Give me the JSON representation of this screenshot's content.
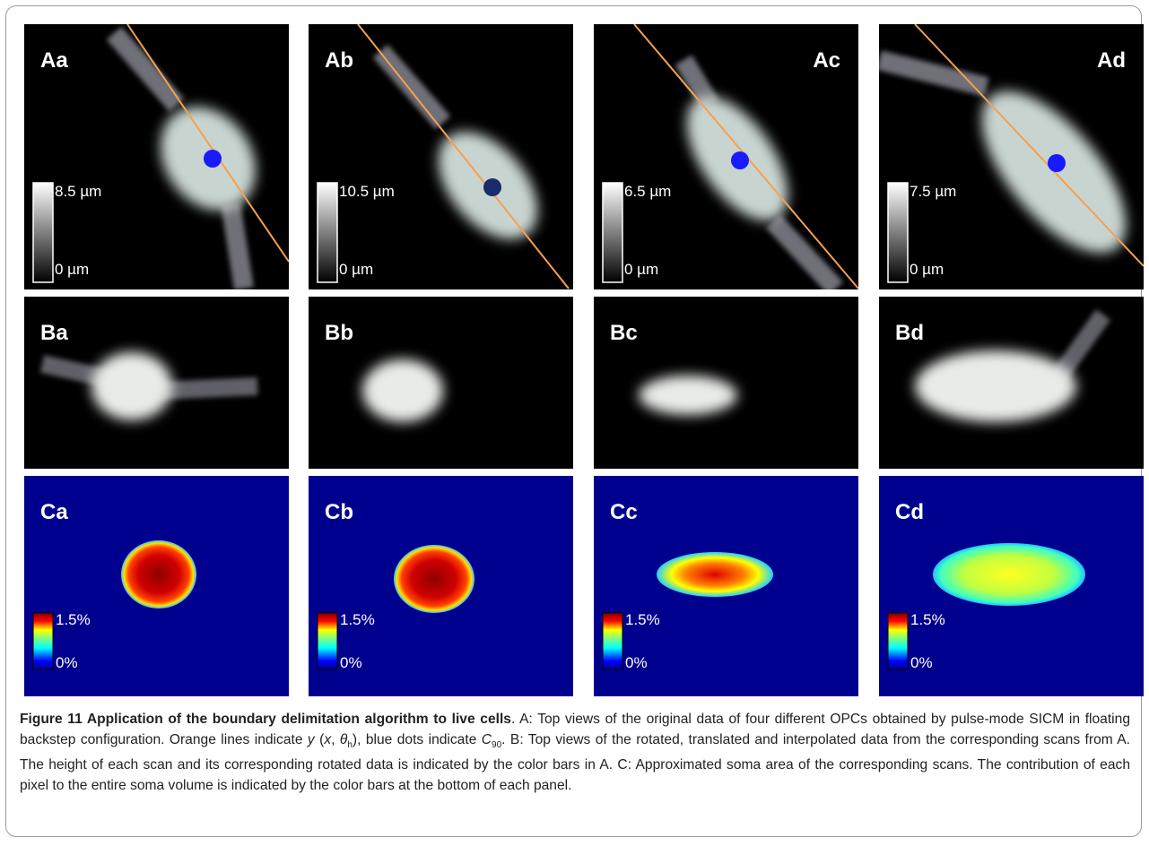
{
  "figure": {
    "rows": [
      {
        "panels": [
          {
            "label": "Aa",
            "scale_max": "8.5 µm",
            "scale_min": "0 µm"
          },
          {
            "label": "Ab",
            "scale_max": "10.5 µm",
            "scale_min": "0 µm"
          },
          {
            "label": "Ac",
            "scale_max": "6.5 µm",
            "scale_min": "0 µm"
          },
          {
            "label": "Ad",
            "scale_max": "7.5 µm",
            "scale_min": "0 µm"
          }
        ]
      },
      {
        "panels": [
          {
            "label": "Ba"
          },
          {
            "label": "Bb"
          },
          {
            "label": "Bc"
          },
          {
            "label": "Bd"
          }
        ]
      },
      {
        "panels": [
          {
            "label": "Ca",
            "scale_max": "1.5%",
            "scale_min": "0%"
          },
          {
            "label": "Cb",
            "scale_max": "1.5%",
            "scale_min": "0%"
          },
          {
            "label": "Cc",
            "scale_max": "1.5%",
            "scale_min": "0%"
          },
          {
            "label": "Cd",
            "scale_max": "1.5%",
            "scale_min": "0%"
          }
        ]
      }
    ]
  },
  "caption": {
    "runs": [
      "Figure 11 Application of the boundary delimitation algorithm to live cells",
      ". A: Top views of the original data of four different OPCs obtained by pulse-mode SICM in floating backstep configuration. Orange lines indicate ",
      "y",
      " (",
      "x",
      ", ",
      "θ",
      "h",
      "), blue dots indicate ",
      "C",
      "90",
      ". B: Top views of the rotated, translated and interpolated data from the corresponding scans from A. The height of each scan and its corresponding rotated data is indicated by the color bars in A. C: Approximated soma area of the corresponding scans. The contribution of each pixel to the entire soma volume is indicated by the color bars at the bottom of each panel."
    ]
  }
}
